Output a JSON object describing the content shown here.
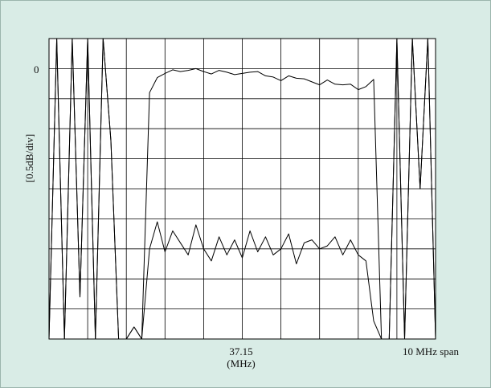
{
  "chart_data": {
    "type": "line",
    "ylabel": "[0.5dB/div]",
    "yticks": [
      {
        "value": 0,
        "label": "0"
      }
    ],
    "xtick_center": "37.15",
    "xunit": "(MHz)",
    "span_label": "10 MHz span",
    "xlim_MHz": [
      32.15,
      42.15
    ],
    "ylim_dB": [
      -4.5,
      0.5
    ],
    "grid": true,
    "colors": {
      "background": "#d9ece6",
      "plot_area": "#ffffff",
      "grid": "#000000",
      "trace": "#000000"
    },
    "series": [
      {
        "x": [
          32.15,
          32.35,
          32.55,
          32.75,
          32.95,
          33.15,
          33.35,
          33.55,
          33.75,
          33.95,
          34.15,
          34.35,
          34.55,
          34.75,
          34.95,
          35.15,
          35.35,
          35.55,
          35.75,
          35.95,
          36.15,
          36.35,
          36.55,
          36.75,
          36.95,
          37.15,
          37.35,
          37.55,
          37.75,
          37.95,
          38.15,
          38.35,
          38.55,
          38.75,
          38.95,
          39.15,
          39.35,
          39.55,
          39.75,
          39.95,
          40.15,
          40.35,
          40.55,
          40.75,
          40.95,
          41.15,
          41.35,
          41.55,
          41.75,
          41.95,
          42.15
        ],
        "y": [
          -4.5,
          0.5,
          -4.5,
          0.5,
          -3.8,
          0.5,
          -4.5,
          0.5,
          -1.2,
          -4.5,
          -4.5,
          -4.3,
          -4.5,
          -0.4,
          -0.15,
          -0.08,
          -0.02,
          -0.05,
          -0.03,
          0.0,
          -0.05,
          -0.09,
          -0.03,
          -0.06,
          -0.1,
          -0.08,
          -0.06,
          -0.05,
          -0.12,
          -0.14,
          -0.2,
          -0.12,
          -0.16,
          -0.17,
          -0.22,
          -0.27,
          -0.19,
          -0.26,
          -0.27,
          -0.26,
          -0.35,
          -0.3,
          -0.18,
          -4.5,
          -4.5,
          0.5,
          -4.5,
          0.5,
          -2.0,
          0.5,
          -4.5
        ]
      },
      {
        "x": [
          32.15,
          32.35,
          32.55,
          32.75,
          32.95,
          33.15,
          33.35,
          33.55,
          33.75,
          33.95,
          34.15,
          34.35,
          34.55,
          34.75,
          34.95,
          35.15,
          35.35,
          35.55,
          35.75,
          35.95,
          36.15,
          36.35,
          36.55,
          36.75,
          36.95,
          37.15,
          37.35,
          37.55,
          37.75,
          37.95,
          38.15,
          38.35,
          38.55,
          38.75,
          38.95,
          39.15,
          39.35,
          39.55,
          39.75,
          39.95,
          40.15,
          40.35,
          40.55,
          40.75,
          40.95,
          41.15,
          41.35,
          41.55,
          41.75,
          41.95,
          42.15
        ],
        "y": [
          -4.5,
          0.5,
          -4.5,
          0.5,
          -3.8,
          0.5,
          -4.5,
          0.5,
          -1.2,
          -4.5,
          -4.5,
          -4.3,
          -4.5,
          -3.0,
          -2.55,
          -3.05,
          -2.7,
          -2.9,
          -3.1,
          -2.6,
          -3.0,
          -3.2,
          -2.8,
          -3.1,
          -2.85,
          -3.15,
          -2.7,
          -3.05,
          -2.8,
          -3.1,
          -3.0,
          -2.75,
          -3.25,
          -2.9,
          -2.85,
          -3.0,
          -2.95,
          -2.8,
          -3.1,
          -2.85,
          -3.1,
          -3.2,
          -4.2,
          -4.5,
          -4.5,
          0.5,
          -4.5,
          0.5,
          -2.0,
          0.5,
          -4.5
        ]
      }
    ]
  }
}
